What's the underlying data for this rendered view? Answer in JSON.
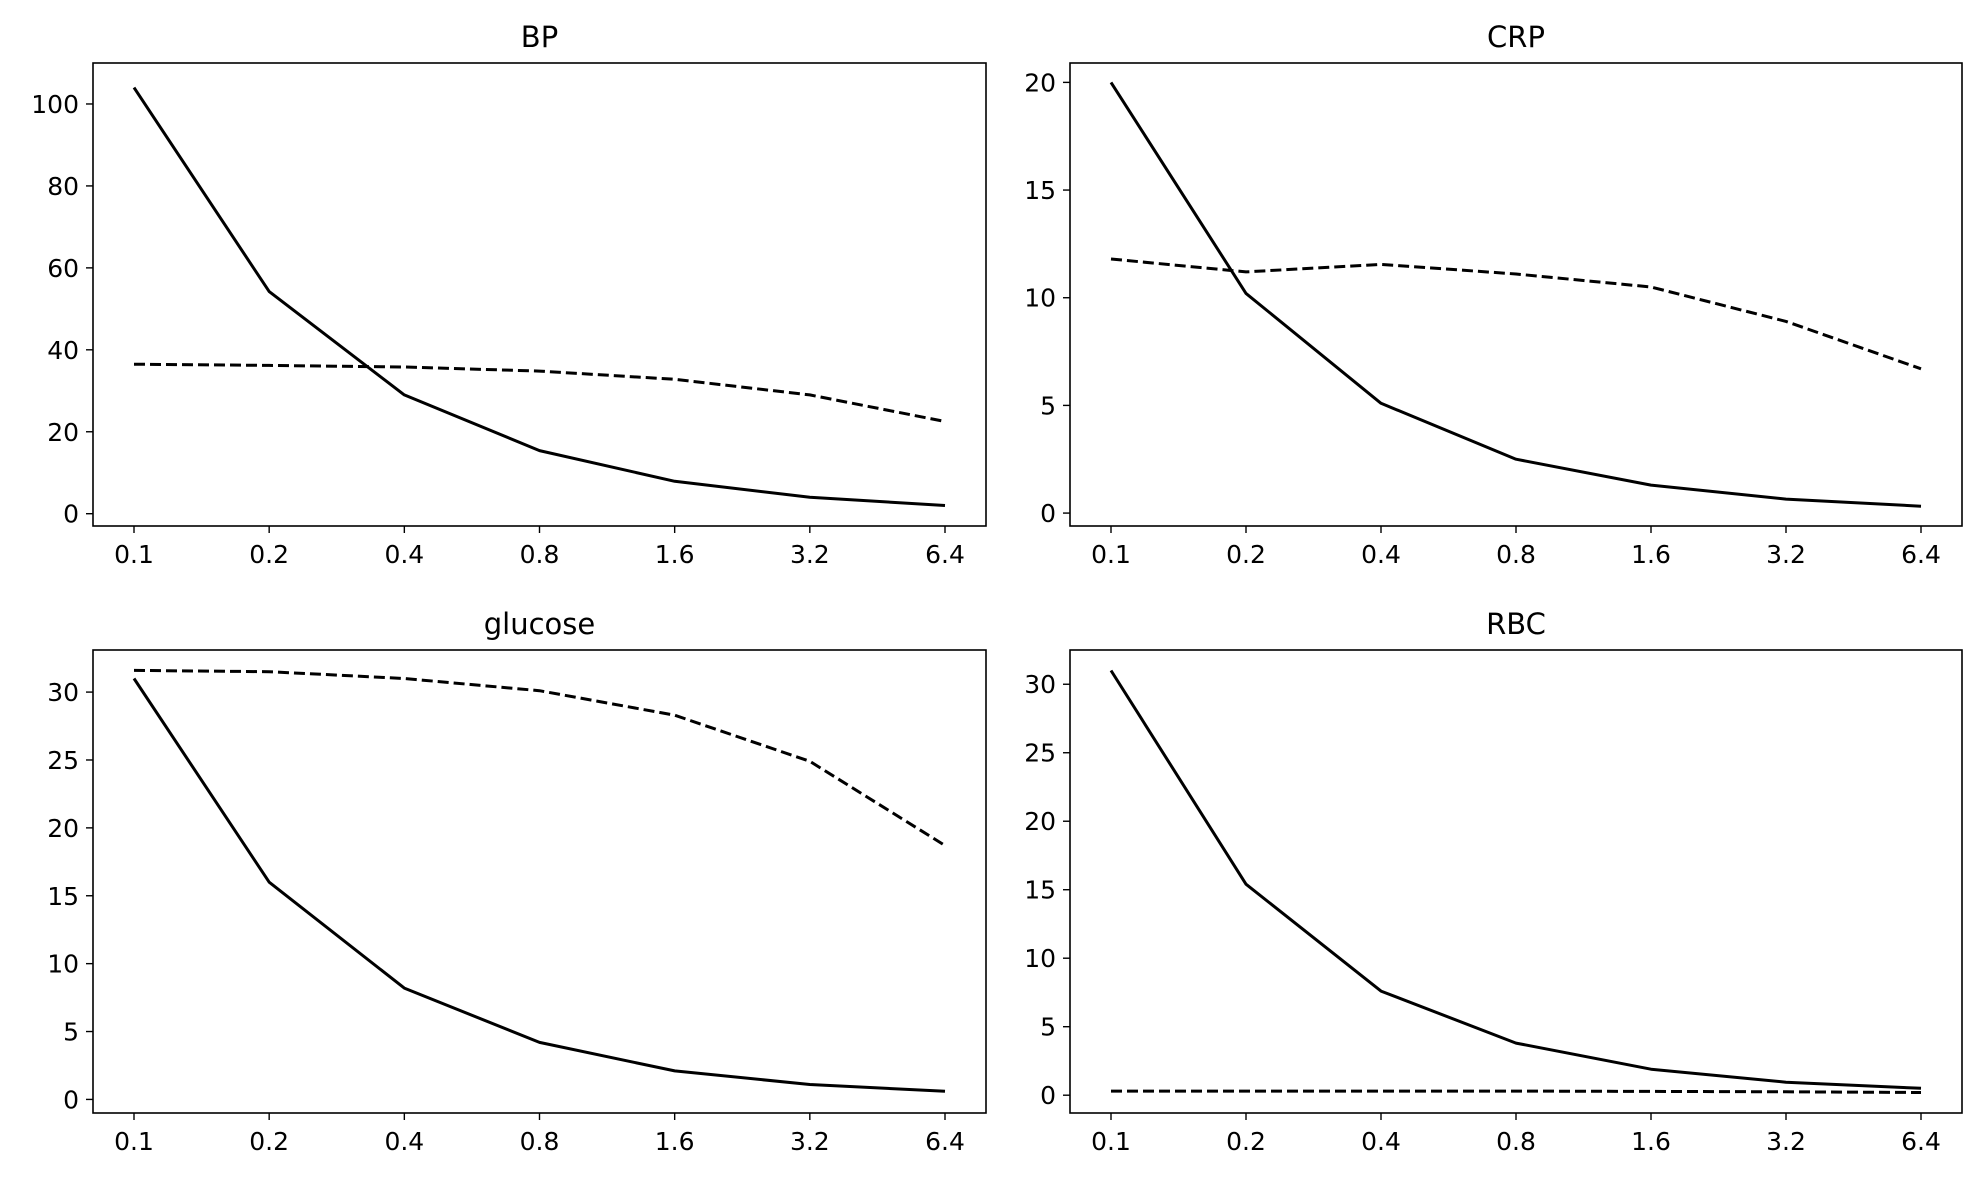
{
  "chart_data": [
    {
      "type": "line",
      "title": "BP",
      "categories": [
        "0.1",
        "0.2",
        "0.4",
        "0.8",
        "1.6",
        "3.2",
        "6.4"
      ],
      "ylim": [
        -3,
        110
      ],
      "yticks": [
        "0",
        "20",
        "40",
        "60",
        "80",
        "100"
      ],
      "grid": false,
      "series": [
        {
          "style": "solid",
          "values": [
            104,
            54.2,
            29,
            15.4,
            7.9,
            4,
            2
          ]
        },
        {
          "style": "dashed",
          "values": [
            36.5,
            36.2,
            35.8,
            34.8,
            32.8,
            29,
            22.5
          ]
        }
      ]
    },
    {
      "type": "line",
      "title": "CRP",
      "categories": [
        "0.1",
        "0.2",
        "0.4",
        "0.8",
        "1.6",
        "3.2",
        "6.4"
      ],
      "ylim": [
        -0.6,
        20.9
      ],
      "yticks": [
        "0",
        "5",
        "10",
        "15",
        "20"
      ],
      "grid": false,
      "series": [
        {
          "style": "solid",
          "values": [
            20,
            10.2,
            5.1,
            2.5,
            1.3,
            0.65,
            0.32
          ]
        },
        {
          "style": "dashed",
          "values": [
            11.8,
            11.2,
            11.55,
            11.1,
            10.5,
            8.9,
            6.7
          ]
        }
      ]
    },
    {
      "type": "line",
      "title": "glucose",
      "categories": [
        "0.1",
        "0.2",
        "0.4",
        "0.8",
        "1.6",
        "3.2",
        "6.4"
      ],
      "ylim": [
        -1,
        33.1
      ],
      "yticks": [
        "0",
        "5",
        "10",
        "15",
        "20",
        "25",
        "30"
      ],
      "grid": false,
      "series": [
        {
          "style": "solid",
          "values": [
            31,
            16,
            8.2,
            4.2,
            2.1,
            1.1,
            0.6
          ]
        },
        {
          "style": "dashed",
          "values": [
            31.6,
            31.5,
            31,
            30.1,
            28.3,
            24.9,
            18.7
          ]
        }
      ]
    },
    {
      "type": "line",
      "title": "RBC",
      "categories": [
        "0.1",
        "0.2",
        "0.4",
        "0.8",
        "1.6",
        "3.2",
        "6.4"
      ],
      "ylim": [
        -1.3,
        32.5
      ],
      "yticks": [
        "0",
        "5",
        "10",
        "15",
        "20",
        "25",
        "30"
      ],
      "grid": false,
      "series": [
        {
          "style": "solid",
          "values": [
            31,
            15.4,
            7.6,
            3.8,
            1.9,
            0.95,
            0.5
          ]
        },
        {
          "style": "dashed",
          "values": [
            0.3,
            0.3,
            0.3,
            0.3,
            0.28,
            0.25,
            0.2
          ]
        }
      ]
    }
  ]
}
